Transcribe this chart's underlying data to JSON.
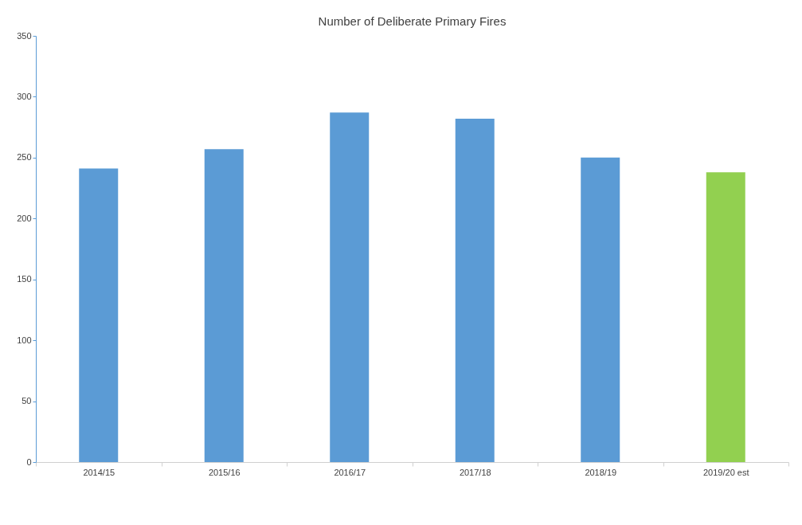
{
  "chart_data": {
    "type": "bar",
    "title": "Number of Deliberate Primary Fires",
    "categories": [
      "2014/15",
      "2015/16",
      "2016/17",
      "2017/18",
      "2018/19",
      "2019/20 est"
    ],
    "values": [
      241,
      257,
      287,
      282,
      250,
      238
    ],
    "colors": [
      "#5b9bd5",
      "#5b9bd5",
      "#5b9bd5",
      "#5b9bd5",
      "#5b9bd5",
      "#92d050"
    ],
    "ylim": [
      0,
      350
    ],
    "yticks": [
      0,
      50,
      100,
      150,
      200,
      250,
      300,
      350
    ],
    "grid": false
  }
}
